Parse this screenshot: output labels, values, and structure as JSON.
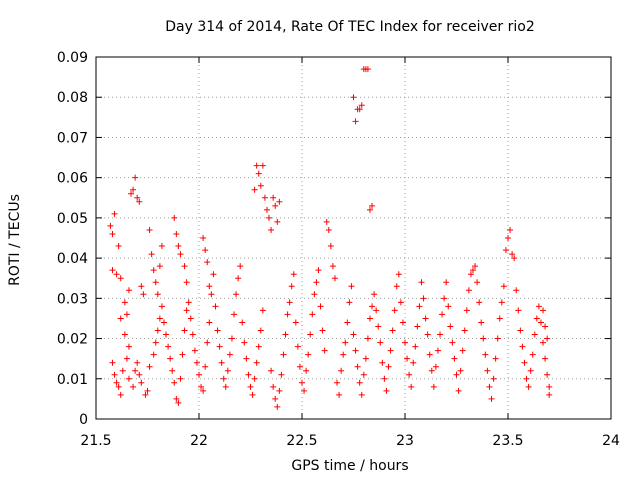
{
  "chart_data": {
    "type": "scatter",
    "title": "Day 314 of 2014, Rate Of TEC Index for receiver rio2",
    "xlabel": "GPS time / hours",
    "ylabel": "ROTI / TECUs",
    "xlim": [
      21.5,
      24
    ],
    "ylim": [
      0,
      0.09
    ],
    "x_ticks": [
      21.5,
      22,
      22.5,
      23,
      23.5,
      24
    ],
    "x_tick_labels": [
      "21.5",
      "22",
      "22.5",
      "23",
      "23.5",
      "24"
    ],
    "y_ticks": [
      0,
      0.01,
      0.02,
      0.03,
      0.04,
      0.05,
      0.06,
      0.07,
      0.08,
      0.09
    ],
    "y_tick_labels": [
      "0",
      "0.01",
      "0.02",
      "0.03",
      "0.04",
      "0.05",
      "0.06",
      "0.07",
      "0.08",
      "0.09"
    ],
    "grid": true,
    "marker": "+",
    "series": [
      {
        "name": "rio2",
        "color": "#ff0000",
        "points": [
          [
            21.57,
            0.048
          ],
          [
            21.58,
            0.046
          ],
          [
            21.59,
            0.051
          ],
          [
            21.58,
            0.037
          ],
          [
            21.6,
            0.036
          ],
          [
            21.61,
            0.043
          ],
          [
            21.62,
            0.035
          ],
          [
            21.64,
            0.029
          ],
          [
            21.65,
            0.026
          ],
          [
            21.66,
            0.032
          ],
          [
            21.67,
            0.056
          ],
          [
            21.68,
            0.057
          ],
          [
            21.69,
            0.06
          ],
          [
            21.7,
            0.055
          ],
          [
            21.71,
            0.054
          ],
          [
            21.72,
            0.033
          ],
          [
            21.73,
            0.031
          ],
          [
            21.62,
            0.025
          ],
          [
            21.64,
            0.021
          ],
          [
            21.66,
            0.018
          ],
          [
            21.58,
            0.014
          ],
          [
            21.59,
            0.011
          ],
          [
            21.6,
            0.009
          ],
          [
            21.61,
            0.008
          ],
          [
            21.62,
            0.006
          ],
          [
            21.63,
            0.012
          ],
          [
            21.65,
            0.015
          ],
          [
            21.66,
            0.01
          ],
          [
            21.68,
            0.008
          ],
          [
            21.69,
            0.012
          ],
          [
            21.7,
            0.014
          ],
          [
            21.71,
            0.011
          ],
          [
            21.72,
            0.009
          ],
          [
            21.74,
            0.006
          ],
          [
            21.75,
            0.007
          ],
          [
            21.76,
            0.013
          ],
          [
            21.78,
            0.016
          ],
          [
            21.79,
            0.019
          ],
          [
            21.8,
            0.022
          ],
          [
            21.81,
            0.025
          ],
          [
            21.82,
            0.028
          ],
          [
            21.83,
            0.024
          ],
          [
            21.84,
            0.021
          ],
          [
            21.76,
            0.047
          ],
          [
            21.77,
            0.041
          ],
          [
            21.78,
            0.037
          ],
          [
            21.79,
            0.034
          ],
          [
            21.8,
            0.031
          ],
          [
            21.81,
            0.038
          ],
          [
            21.82,
            0.043
          ],
          [
            21.85,
            0.018
          ],
          [
            21.86,
            0.015
          ],
          [
            21.87,
            0.012
          ],
          [
            21.88,
            0.009
          ],
          [
            21.89,
            0.005
          ],
          [
            21.9,
            0.004
          ],
          [
            21.91,
            0.01
          ],
          [
            21.92,
            0.016
          ],
          [
            21.93,
            0.022
          ],
          [
            21.94,
            0.027
          ],
          [
            21.88,
            0.05
          ],
          [
            21.89,
            0.046
          ],
          [
            21.9,
            0.043
          ],
          [
            21.91,
            0.041
          ],
          [
            21.93,
            0.038
          ],
          [
            21.94,
            0.034
          ],
          [
            21.95,
            0.029
          ],
          [
            21.96,
            0.025
          ],
          [
            21.97,
            0.021
          ],
          [
            21.98,
            0.017
          ],
          [
            21.99,
            0.014
          ],
          [
            22.0,
            0.011
          ],
          [
            22.01,
            0.008
          ],
          [
            22.02,
            0.007
          ],
          [
            22.03,
            0.013
          ],
          [
            22.04,
            0.019
          ],
          [
            22.05,
            0.024
          ],
          [
            22.06,
            0.031
          ],
          [
            22.07,
            0.036
          ],
          [
            22.02,
            0.045
          ],
          [
            22.03,
            0.042
          ],
          [
            22.04,
            0.039
          ],
          [
            22.05,
            0.033
          ],
          [
            22.08,
            0.028
          ],
          [
            22.09,
            0.022
          ],
          [
            22.1,
            0.018
          ],
          [
            22.11,
            0.014
          ],
          [
            22.12,
            0.01
          ],
          [
            22.13,
            0.008
          ],
          [
            22.14,
            0.012
          ],
          [
            22.15,
            0.016
          ],
          [
            22.16,
            0.02
          ],
          [
            22.17,
            0.026
          ],
          [
            22.18,
            0.031
          ],
          [
            22.19,
            0.035
          ],
          [
            22.2,
            0.038
          ],
          [
            22.21,
            0.024
          ],
          [
            22.22,
            0.019
          ],
          [
            22.23,
            0.015
          ],
          [
            22.24,
            0.011
          ],
          [
            22.25,
            0.008
          ],
          [
            22.26,
            0.006
          ],
          [
            22.27,
            0.01
          ],
          [
            22.28,
            0.014
          ],
          [
            22.29,
            0.018
          ],
          [
            22.3,
            0.022
          ],
          [
            22.31,
            0.027
          ],
          [
            22.27,
            0.057
          ],
          [
            22.28,
            0.063
          ],
          [
            22.29,
            0.061
          ],
          [
            22.3,
            0.058
          ],
          [
            22.31,
            0.063
          ],
          [
            22.32,
            0.055
          ],
          [
            22.33,
            0.052
          ],
          [
            22.34,
            0.05
          ],
          [
            22.35,
            0.047
          ],
          [
            22.36,
            0.055
          ],
          [
            22.37,
            0.053
          ],
          [
            22.38,
            0.049
          ],
          [
            22.39,
            0.054
          ],
          [
            22.35,
            0.012
          ],
          [
            22.36,
            0.008
          ],
          [
            22.37,
            0.005
          ],
          [
            22.38,
            0.003
          ],
          [
            22.39,
            0.007
          ],
          [
            22.4,
            0.011
          ],
          [
            22.41,
            0.016
          ],
          [
            22.42,
            0.021
          ],
          [
            22.43,
            0.026
          ],
          [
            22.44,
            0.029
          ],
          [
            22.45,
            0.033
          ],
          [
            22.46,
            0.036
          ],
          [
            22.47,
            0.024
          ],
          [
            22.48,
            0.018
          ],
          [
            22.49,
            0.013
          ],
          [
            22.5,
            0.009
          ],
          [
            22.51,
            0.007
          ],
          [
            22.52,
            0.012
          ],
          [
            22.53,
            0.016
          ],
          [
            22.54,
            0.021
          ],
          [
            22.55,
            0.026
          ],
          [
            22.56,
            0.031
          ],
          [
            22.57,
            0.034
          ],
          [
            22.58,
            0.037
          ],
          [
            22.59,
            0.028
          ],
          [
            22.6,
            0.022
          ],
          [
            22.61,
            0.017
          ],
          [
            22.62,
            0.049
          ],
          [
            22.63,
            0.047
          ],
          [
            22.64,
            0.043
          ],
          [
            22.65,
            0.038
          ],
          [
            22.66,
            0.035
          ],
          [
            22.67,
            0.009
          ],
          [
            22.68,
            0.006
          ],
          [
            22.69,
            0.012
          ],
          [
            22.7,
            0.016
          ],
          [
            22.71,
            0.019
          ],
          [
            22.72,
            0.024
          ],
          [
            22.73,
            0.029
          ],
          [
            22.74,
            0.033
          ],
          [
            22.75,
            0.08
          ],
          [
            22.76,
            0.074
          ],
          [
            22.77,
            0.077
          ],
          [
            22.78,
            0.077
          ],
          [
            22.79,
            0.078
          ],
          [
            22.8,
            0.087
          ],
          [
            22.81,
            0.087
          ],
          [
            22.82,
            0.087
          ],
          [
            22.83,
            0.052
          ],
          [
            22.84,
            0.053
          ],
          [
            22.75,
            0.021
          ],
          [
            22.76,
            0.017
          ],
          [
            22.77,
            0.013
          ],
          [
            22.78,
            0.009
          ],
          [
            22.79,
            0.006
          ],
          [
            22.8,
            0.011
          ],
          [
            22.81,
            0.015
          ],
          [
            22.82,
            0.02
          ],
          [
            22.83,
            0.025
          ],
          [
            22.84,
            0.028
          ],
          [
            22.85,
            0.031
          ],
          [
            22.86,
            0.027
          ],
          [
            22.87,
            0.023
          ],
          [
            22.88,
            0.019
          ],
          [
            22.89,
            0.014
          ],
          [
            22.9,
            0.01
          ],
          [
            22.91,
            0.007
          ],
          [
            22.92,
            0.013
          ],
          [
            22.93,
            0.017
          ],
          [
            22.94,
            0.022
          ],
          [
            22.95,
            0.027
          ],
          [
            22.96,
            0.033
          ],
          [
            22.97,
            0.036
          ],
          [
            22.98,
            0.029
          ],
          [
            22.99,
            0.024
          ],
          [
            23.0,
            0.019
          ],
          [
            23.01,
            0.015
          ],
          [
            23.02,
            0.011
          ],
          [
            23.03,
            0.008
          ],
          [
            23.04,
            0.014
          ],
          [
            23.05,
            0.018
          ],
          [
            23.06,
            0.023
          ],
          [
            23.07,
            0.028
          ],
          [
            23.08,
            0.034
          ],
          [
            23.09,
            0.03
          ],
          [
            23.1,
            0.025
          ],
          [
            23.11,
            0.021
          ],
          [
            23.12,
            0.016
          ],
          [
            23.13,
            0.012
          ],
          [
            23.14,
            0.008
          ],
          [
            23.15,
            0.013
          ],
          [
            23.16,
            0.017
          ],
          [
            23.17,
            0.021
          ],
          [
            23.18,
            0.026
          ],
          [
            23.19,
            0.03
          ],
          [
            23.2,
            0.034
          ],
          [
            23.21,
            0.028
          ],
          [
            23.22,
            0.023
          ],
          [
            23.23,
            0.019
          ],
          [
            23.24,
            0.015
          ],
          [
            23.25,
            0.011
          ],
          [
            23.26,
            0.007
          ],
          [
            23.27,
            0.012
          ],
          [
            23.28,
            0.017
          ],
          [
            23.29,
            0.022
          ],
          [
            23.3,
            0.027
          ],
          [
            23.31,
            0.032
          ],
          [
            23.32,
            0.036
          ],
          [
            23.33,
            0.037
          ],
          [
            23.34,
            0.038
          ],
          [
            23.35,
            0.034
          ],
          [
            23.36,
            0.029
          ],
          [
            23.37,
            0.024
          ],
          [
            23.38,
            0.02
          ],
          [
            23.39,
            0.016
          ],
          [
            23.4,
            0.012
          ],
          [
            23.41,
            0.008
          ],
          [
            23.42,
            0.005
          ],
          [
            23.43,
            0.01
          ],
          [
            23.44,
            0.015
          ],
          [
            23.45,
            0.02
          ],
          [
            23.46,
            0.025
          ],
          [
            23.47,
            0.029
          ],
          [
            23.48,
            0.033
          ],
          [
            23.49,
            0.042
          ],
          [
            23.5,
            0.045
          ],
          [
            23.51,
            0.047
          ],
          [
            23.52,
            0.041
          ],
          [
            23.53,
            0.04
          ],
          [
            23.54,
            0.032
          ],
          [
            23.55,
            0.027
          ],
          [
            23.56,
            0.022
          ],
          [
            23.57,
            0.018
          ],
          [
            23.58,
            0.014
          ],
          [
            23.59,
            0.01
          ],
          [
            23.6,
            0.008
          ],
          [
            23.61,
            0.012
          ],
          [
            23.62,
            0.016
          ],
          [
            23.63,
            0.021
          ],
          [
            23.64,
            0.025
          ],
          [
            23.65,
            0.028
          ],
          [
            23.66,
            0.024
          ],
          [
            23.67,
            0.019
          ],
          [
            23.68,
            0.015
          ],
          [
            23.69,
            0.011
          ],
          [
            23.7,
            0.008
          ],
          [
            23.7,
            0.006
          ],
          [
            23.69,
            0.02
          ],
          [
            23.68,
            0.023
          ],
          [
            23.67,
            0.027
          ]
        ]
      }
    ]
  }
}
